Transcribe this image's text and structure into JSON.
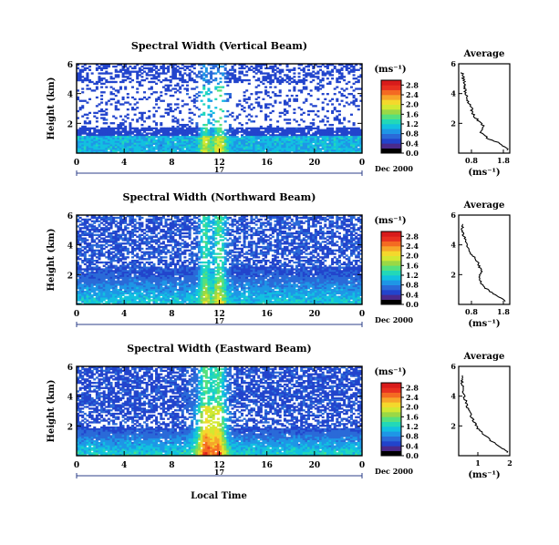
{
  "figure": {
    "x_axis_label": "Local Time",
    "day_label": "17",
    "month_label": "Dec 2000",
    "y_axis_label": "Height (km)",
    "units_label": "(ms⁻¹)",
    "average_title": "Average",
    "average_xlabel": "(ms⁻¹)"
  },
  "colorbar": {
    "colors": [
      "#000000",
      "#4a2a8c",
      "#2244cc",
      "#2a6ad8",
      "#1e96e6",
      "#12c0e0",
      "#22d8b8",
      "#55e07e",
      "#9ad846",
      "#d2e832",
      "#f4d82c",
      "#f7a52a",
      "#f46a22",
      "#e83020",
      "#d81b1b"
    ]
  },
  "chart_data": [
    {
      "type": "heatmap",
      "title": "Spectral Width (Vertical Beam)",
      "xlabel": "Local Time",
      "ylabel": "Height (km)",
      "x_ticks": [
        "0",
        "4",
        "8",
        "12",
        "16",
        "20",
        "0"
      ],
      "xlim": [
        0,
        24
      ],
      "y_ticks": [
        "2",
        "4",
        "6"
      ],
      "ylim": [
        0,
        6
      ],
      "colorbar_ticks": [
        "0.0",
        "0.4",
        "0.8",
        "1.2",
        "1.6",
        "2.0",
        "2.4",
        "2.8"
      ],
      "colorbar_range": [
        0,
        3.0
      ],
      "average_profile": {
        "title": "Average",
        "xlabel": "(ms⁻¹)",
        "x_ticks": [
          "0.8",
          "1.8"
        ],
        "xlim": [
          0.4,
          2.0
        ],
        "y_ticks": [
          "2",
          "4",
          "6"
        ],
        "ylim": [
          0,
          6
        ],
        "height_km": [
          0.2,
          0.6,
          1.0,
          1.4,
          1.8,
          2.2,
          2.6,
          3.0,
          3.4,
          3.8,
          4.2,
          4.6,
          5.0,
          5.4
        ],
        "width": [
          1.95,
          1.75,
          1.3,
          1.1,
          1.2,
          1.0,
          0.85,
          0.8,
          0.7,
          0.65,
          0.6,
          0.58,
          0.55,
          0.5
        ]
      }
    },
    {
      "type": "heatmap",
      "title": "Spectral Width (Northward Beam)",
      "xlabel": "Local Time",
      "ylabel": "Height (km)",
      "x_ticks": [
        "0",
        "4",
        "8",
        "12",
        "16",
        "20",
        "0"
      ],
      "xlim": [
        0,
        24
      ],
      "y_ticks": [
        "2",
        "4",
        "6"
      ],
      "ylim": [
        0,
        6
      ],
      "colorbar_ticks": [
        "0.0",
        "0.4",
        "0.8",
        "1.2",
        "1.6",
        "2.0",
        "2.4",
        "2.8"
      ],
      "colorbar_range": [
        0,
        3.0
      ],
      "average_profile": {
        "title": "Average",
        "xlabel": "(ms⁻¹)",
        "x_ticks": [
          "0.8",
          "1.8"
        ],
        "xlim": [
          0.4,
          2.0
        ],
        "y_ticks": [
          "2",
          "4",
          "6"
        ],
        "ylim": [
          0,
          6
        ],
        "height_km": [
          0.2,
          0.6,
          1.0,
          1.4,
          1.8,
          2.2,
          2.6,
          3.0,
          3.4,
          3.8,
          4.2,
          4.6,
          5.0,
          5.4
        ],
        "width": [
          1.9,
          1.6,
          1.3,
          1.1,
          1.05,
          1.1,
          1.05,
          0.95,
          0.8,
          0.7,
          0.62,
          0.56,
          0.52,
          0.5
        ]
      }
    },
    {
      "type": "heatmap",
      "title": "Spectral Width (Eastward Beam)",
      "xlabel": "Local Time",
      "ylabel": "Height (km)",
      "x_ticks": [
        "0",
        "4",
        "8",
        "12",
        "16",
        "20",
        "0"
      ],
      "xlim": [
        0,
        24
      ],
      "y_ticks": [
        "2",
        "4",
        "6"
      ],
      "ylim": [
        0,
        6
      ],
      "colorbar_ticks": [
        "0.0",
        "0.4",
        "0.8",
        "1.2",
        "1.6",
        "2.0",
        "2.4",
        "2.8"
      ],
      "colorbar_range": [
        0,
        3.0
      ],
      "average_profile": {
        "title": "Average",
        "xlabel": "(ms⁻¹)",
        "x_ticks": [
          "1",
          "2"
        ],
        "xlim": [
          0.4,
          2.0
        ],
        "y_ticks": [
          "2",
          "4",
          "6"
        ],
        "ylim": [
          0,
          6
        ],
        "height_km": [
          0.2,
          0.6,
          1.0,
          1.4,
          1.8,
          2.2,
          2.6,
          3.0,
          3.4,
          3.8,
          4.2,
          4.6,
          5.0,
          5.4
        ],
        "width": [
          1.95,
          1.7,
          1.4,
          1.2,
          1.0,
          0.9,
          0.8,
          0.72,
          0.65,
          0.6,
          0.56,
          0.52,
          0.5,
          0.48
        ]
      }
    }
  ]
}
